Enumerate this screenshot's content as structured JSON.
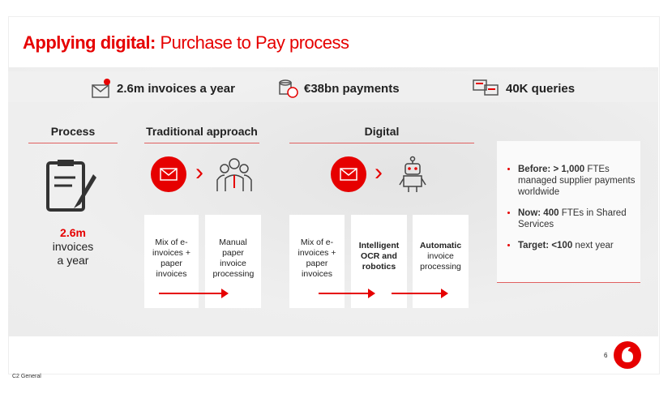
{
  "title": {
    "bold": "Applying digital:",
    "rest": " Purchase to Pay process"
  },
  "stats": [
    {
      "icon": "envelope-document-icon",
      "text": "2.6m invoices a year"
    },
    {
      "icon": "coins-icon",
      "text": "€38bn payments"
    },
    {
      "icon": "chat-bubbles-icon",
      "text": "40K queries"
    }
  ],
  "headers": {
    "process": "Process",
    "traditional": "Traditional approach",
    "digital": "Digital"
  },
  "process": {
    "value": "2.6m",
    "line1": "invoices",
    "line2": "a year"
  },
  "traditional_boxes": [
    {
      "bold": "",
      "text": "Mix of e-invoices + paper invoices"
    },
    {
      "bold": "",
      "text": "Manual paper invoice processing"
    }
  ],
  "digital_boxes": [
    {
      "bold": "",
      "text": "Mix of e-invoices + paper invoices"
    },
    {
      "bold": "Intelligent OCR and robotics",
      "text": ""
    },
    {
      "bold": "Automatic",
      "text": " invoice processing"
    }
  ],
  "bullets": [
    {
      "bold": "Before: > 1,000",
      "text": " FTEs managed supplier payments worldwide"
    },
    {
      "bold": "Now: 400",
      "text": " FTEs in Shared Services"
    },
    {
      "bold": "Target: <100",
      "text": " next year"
    }
  ],
  "page_number": "6",
  "classification": "C2 General",
  "colors": {
    "accent": "#e60000"
  }
}
